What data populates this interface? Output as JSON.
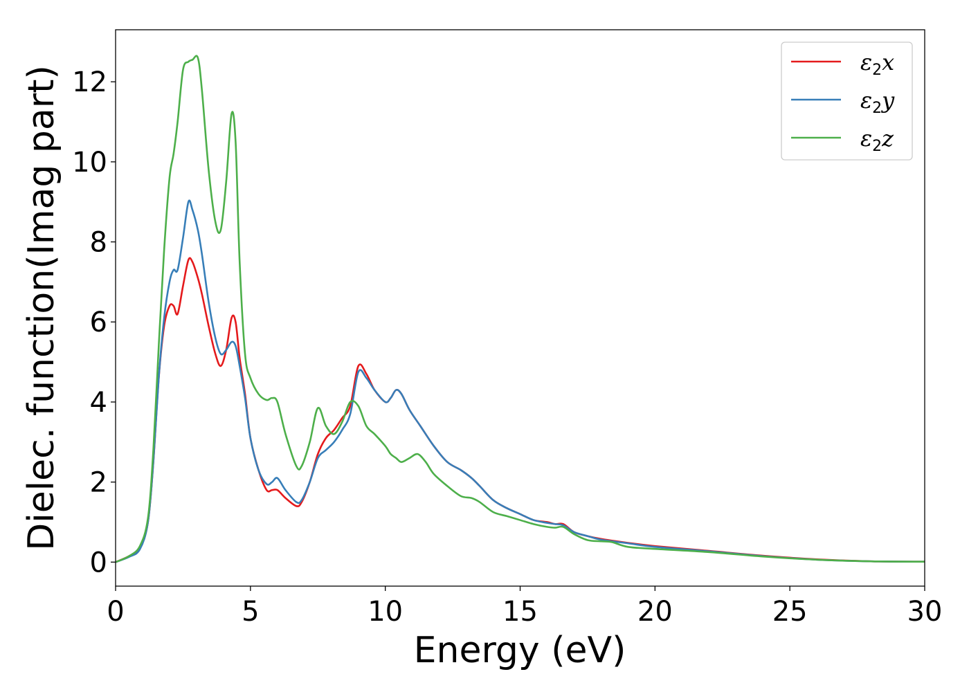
{
  "chart_data": {
    "type": "line",
    "xlabel": "Energy (eV)",
    "ylabel": "Dielec. function(Imag part)",
    "xlim": [
      0,
      30
    ],
    "ylim": [
      -0.6,
      13.3
    ],
    "xticks": [
      0,
      5,
      10,
      15,
      20,
      25,
      30
    ],
    "yticks": [
      0,
      2,
      4,
      6,
      8,
      10,
      12
    ],
    "grid": false,
    "legend_position": "top-right",
    "series": [
      {
        "name": "ε2x",
        "legend": {
          "symbol": "ε",
          "sub": "2",
          "var": "x"
        },
        "color": "#e41a1c",
        "points": [
          [
            0,
            0
          ],
          [
            0.5,
            0.15
          ],
          [
            0.9,
            0.35
          ],
          [
            1.2,
            1.0
          ],
          [
            1.4,
            2.5
          ],
          [
            1.6,
            4.6
          ],
          [
            1.8,
            5.9
          ],
          [
            2.0,
            6.4
          ],
          [
            2.15,
            6.4
          ],
          [
            2.3,
            6.2
          ],
          [
            2.5,
            6.9
          ],
          [
            2.7,
            7.55
          ],
          [
            2.85,
            7.5
          ],
          [
            3.05,
            7.1
          ],
          [
            3.2,
            6.7
          ],
          [
            3.45,
            5.9
          ],
          [
            3.7,
            5.2
          ],
          [
            3.9,
            4.9
          ],
          [
            4.1,
            5.3
          ],
          [
            4.3,
            6.1
          ],
          [
            4.45,
            6.0
          ],
          [
            4.6,
            5.1
          ],
          [
            4.8,
            4.2
          ],
          [
            5.0,
            3.1
          ],
          [
            5.3,
            2.3
          ],
          [
            5.6,
            1.8
          ],
          [
            5.8,
            1.8
          ],
          [
            6.0,
            1.8
          ],
          [
            6.3,
            1.6
          ],
          [
            6.7,
            1.4
          ],
          [
            6.9,
            1.5
          ],
          [
            7.2,
            2.0
          ],
          [
            7.5,
            2.7
          ],
          [
            7.8,
            3.1
          ],
          [
            8.1,
            3.3
          ],
          [
            8.4,
            3.6
          ],
          [
            8.7,
            3.9
          ],
          [
            9.0,
            4.9
          ],
          [
            9.3,
            4.7
          ],
          [
            9.6,
            4.3
          ],
          [
            10.0,
            4.0
          ],
          [
            10.2,
            4.1
          ],
          [
            10.4,
            4.3
          ],
          [
            10.6,
            4.2
          ],
          [
            10.9,
            3.8
          ],
          [
            11.3,
            3.4
          ],
          [
            11.8,
            2.9
          ],
          [
            12.3,
            2.5
          ],
          [
            12.8,
            2.3
          ],
          [
            13.2,
            2.1
          ],
          [
            13.5,
            1.9
          ],
          [
            14.0,
            1.55
          ],
          [
            14.5,
            1.35
          ],
          [
            15.0,
            1.2
          ],
          [
            15.5,
            1.05
          ],
          [
            16.0,
            1.0
          ],
          [
            16.3,
            0.95
          ],
          [
            16.6,
            0.95
          ],
          [
            17.0,
            0.75
          ],
          [
            17.5,
            0.65
          ],
          [
            18.0,
            0.58
          ],
          [
            19.0,
            0.48
          ],
          [
            20.0,
            0.4
          ],
          [
            22.0,
            0.28
          ],
          [
            24.0,
            0.16
          ],
          [
            26.0,
            0.07
          ],
          [
            28.0,
            0.02
          ],
          [
            30.0,
            0.01
          ]
        ]
      },
      {
        "name": "ε2y",
        "legend": {
          "symbol": "ε",
          "sub": "2",
          "var": "y"
        },
        "color": "#377eb8",
        "points": [
          [
            0,
            0
          ],
          [
            0.5,
            0.13
          ],
          [
            0.9,
            0.32
          ],
          [
            1.2,
            1.0
          ],
          [
            1.4,
            2.5
          ],
          [
            1.6,
            4.6
          ],
          [
            1.8,
            6.1
          ],
          [
            2.0,
            7.0
          ],
          [
            2.15,
            7.3
          ],
          [
            2.3,
            7.3
          ],
          [
            2.5,
            8.1
          ],
          [
            2.7,
            9.0
          ],
          [
            2.85,
            8.8
          ],
          [
            3.05,
            8.3
          ],
          [
            3.2,
            7.7
          ],
          [
            3.45,
            6.5
          ],
          [
            3.7,
            5.6
          ],
          [
            3.9,
            5.2
          ],
          [
            4.1,
            5.3
          ],
          [
            4.3,
            5.5
          ],
          [
            4.45,
            5.4
          ],
          [
            4.6,
            4.9
          ],
          [
            4.8,
            4.1
          ],
          [
            5.0,
            3.1
          ],
          [
            5.3,
            2.3
          ],
          [
            5.6,
            1.95
          ],
          [
            5.8,
            2.0
          ],
          [
            6.0,
            2.1
          ],
          [
            6.3,
            1.8
          ],
          [
            6.7,
            1.5
          ],
          [
            6.9,
            1.55
          ],
          [
            7.2,
            2.0
          ],
          [
            7.5,
            2.6
          ],
          [
            7.8,
            2.8
          ],
          [
            8.1,
            3.0
          ],
          [
            8.4,
            3.3
          ],
          [
            8.7,
            3.7
          ],
          [
            9.0,
            4.75
          ],
          [
            9.3,
            4.6
          ],
          [
            9.6,
            4.3
          ],
          [
            10.0,
            4.0
          ],
          [
            10.2,
            4.1
          ],
          [
            10.4,
            4.3
          ],
          [
            10.6,
            4.2
          ],
          [
            10.9,
            3.8
          ],
          [
            11.3,
            3.4
          ],
          [
            11.8,
            2.9
          ],
          [
            12.3,
            2.5
          ],
          [
            12.8,
            2.3
          ],
          [
            13.2,
            2.1
          ],
          [
            13.5,
            1.9
          ],
          [
            14.0,
            1.55
          ],
          [
            14.5,
            1.35
          ],
          [
            15.0,
            1.2
          ],
          [
            15.5,
            1.05
          ],
          [
            16.0,
            0.98
          ],
          [
            16.3,
            0.95
          ],
          [
            16.6,
            0.92
          ],
          [
            17.0,
            0.75
          ],
          [
            17.5,
            0.65
          ],
          [
            18.0,
            0.56
          ],
          [
            19.0,
            0.47
          ],
          [
            20.0,
            0.38
          ],
          [
            22.0,
            0.27
          ],
          [
            24.0,
            0.15
          ],
          [
            26.0,
            0.06
          ],
          [
            28.0,
            0.02
          ],
          [
            30.0,
            0.01
          ]
        ]
      },
      {
        "name": "ε2z",
        "legend": {
          "symbol": "ε",
          "sub": "2",
          "var": "z"
        },
        "color": "#4daf4a",
        "points": [
          [
            0,
            0
          ],
          [
            0.5,
            0.15
          ],
          [
            0.9,
            0.4
          ],
          [
            1.2,
            1.1
          ],
          [
            1.4,
            2.8
          ],
          [
            1.6,
            5.4
          ],
          [
            1.8,
            7.8
          ],
          [
            2.0,
            9.6
          ],
          [
            2.15,
            10.2
          ],
          [
            2.3,
            11.0
          ],
          [
            2.5,
            12.3
          ],
          [
            2.7,
            12.5
          ],
          [
            2.85,
            12.55
          ],
          [
            3.05,
            12.6
          ],
          [
            3.2,
            11.8
          ],
          [
            3.45,
            9.8
          ],
          [
            3.7,
            8.5
          ],
          [
            3.9,
            8.3
          ],
          [
            4.1,
            9.5
          ],
          [
            4.3,
            11.2
          ],
          [
            4.45,
            10.5
          ],
          [
            4.6,
            7.5
          ],
          [
            4.8,
            5.2
          ],
          [
            5.0,
            4.6
          ],
          [
            5.3,
            4.2
          ],
          [
            5.6,
            4.05
          ],
          [
            5.8,
            4.1
          ],
          [
            6.0,
            4.0
          ],
          [
            6.3,
            3.2
          ],
          [
            6.7,
            2.4
          ],
          [
            6.9,
            2.4
          ],
          [
            7.2,
            3.0
          ],
          [
            7.5,
            3.85
          ],
          [
            7.8,
            3.4
          ],
          [
            8.1,
            3.2
          ],
          [
            8.4,
            3.5
          ],
          [
            8.7,
            4.0
          ],
          [
            9.0,
            3.9
          ],
          [
            9.3,
            3.4
          ],
          [
            9.6,
            3.2
          ],
          [
            10.0,
            2.9
          ],
          [
            10.2,
            2.7
          ],
          [
            10.4,
            2.6
          ],
          [
            10.6,
            2.5
          ],
          [
            10.9,
            2.6
          ],
          [
            11.2,
            2.7
          ],
          [
            11.5,
            2.5
          ],
          [
            11.8,
            2.2
          ],
          [
            12.3,
            1.9
          ],
          [
            12.8,
            1.65
          ],
          [
            13.2,
            1.6
          ],
          [
            13.5,
            1.5
          ],
          [
            14.0,
            1.25
          ],
          [
            14.5,
            1.15
          ],
          [
            15.0,
            1.05
          ],
          [
            15.5,
            0.95
          ],
          [
            16.0,
            0.88
          ],
          [
            16.3,
            0.86
          ],
          [
            16.6,
            0.88
          ],
          [
            17.0,
            0.7
          ],
          [
            17.5,
            0.55
          ],
          [
            18.0,
            0.52
          ],
          [
            18.4,
            0.5
          ],
          [
            19.0,
            0.38
          ],
          [
            20.0,
            0.33
          ],
          [
            22.0,
            0.25
          ],
          [
            24.0,
            0.14
          ],
          [
            26.0,
            0.06
          ],
          [
            28.0,
            0.02
          ],
          [
            30.0,
            0.01
          ]
        ]
      }
    ]
  }
}
